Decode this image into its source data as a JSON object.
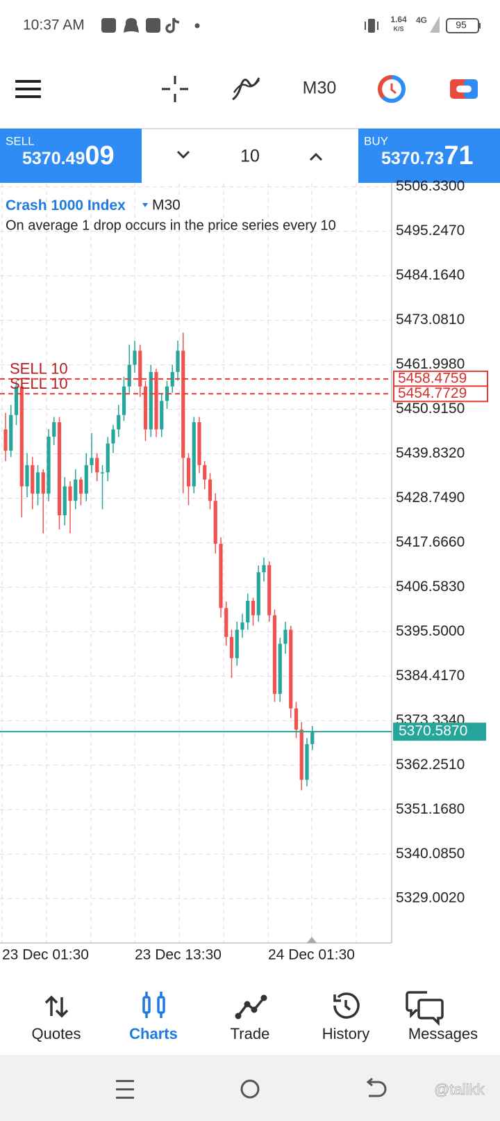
{
  "status_bar": {
    "time": "10:37 AM",
    "speed": "1.64",
    "speed_unit": "K/S",
    "network": "4G",
    "battery": "95"
  },
  "toolbar": {
    "timeframe": "M30"
  },
  "trade_bar": {
    "sell_label": "SELL",
    "sell_price_main": "5370.49",
    "sell_price_big": "09",
    "volume": "10",
    "buy_label": "BUY",
    "buy_price_main": "5370.73",
    "buy_price_big": "71"
  },
  "chart": {
    "symbol": "Crash 1000 Index",
    "timeframe": "M30",
    "description": "On average 1 drop occurs in the price series every 10",
    "ylim": [
      5318.0,
      5506.9
    ],
    "yticks": [
      {
        "value": 5506.33,
        "label": "5506.3300"
      },
      {
        "value": 5495.247,
        "label": "5495.2470"
      },
      {
        "value": 5484.164,
        "label": "5484.1640"
      },
      {
        "value": 5473.081,
        "label": "5473.0810"
      },
      {
        "value": 5461.998,
        "label": "5461.9980"
      },
      {
        "value": 5450.915,
        "label": "5450.9150"
      },
      {
        "value": 5439.832,
        "label": "5439.8320"
      },
      {
        "value": 5428.749,
        "label": "5428.7490"
      },
      {
        "value": 5417.666,
        "label": "5417.6660"
      },
      {
        "value": 5406.583,
        "label": "5406.5830"
      },
      {
        "value": 5395.5,
        "label": "5395.5000"
      },
      {
        "value": 5384.417,
        "label": "5384.4170"
      },
      {
        "value": 5373.334,
        "label": "5373.3340"
      },
      {
        "value": 5362.251,
        "label": "5362.2510"
      },
      {
        "value": 5351.168,
        "label": "5351.1680"
      },
      {
        "value": 5340.085,
        "label": "5340.0850"
      },
      {
        "value": 5329.002,
        "label": "5329.0020"
      }
    ],
    "xticks": [
      "23 Dec 01:30",
      "23 Dec 13:30",
      "24 Dec 01:30"
    ],
    "up_color": "#26a69a",
    "down_color": "#ef5350",
    "candles": {
      "open": [
        5445.9,
        5440.6,
        5449.5,
        5456.6,
        5431.7,
        5437.0,
        5429.9,
        5435.2,
        5429.9,
        5444.1,
        5447.7,
        5424.5,
        5431.7,
        5428.1,
        5433.4,
        5429.9,
        5437.0,
        5438.8,
        5435.2,
        5435.2,
        5442.4,
        5445.9,
        5449.5,
        5456.6,
        5462.0,
        5465.5,
        5456.6,
        5445.9,
        5460.2,
        5445.9,
        5453.0,
        5456.6,
        5460.2,
        5465.5,
        5438.8,
        5431.7,
        5447.7,
        5437.0,
        5433.4,
        5428.1,
        5417.4,
        5401.4,
        5394.2,
        5388.9,
        5396.0,
        5397.8,
        5403.2,
        5399.6,
        5410.3,
        5412.1,
        5399.6,
        5380.0,
        5392.5,
        5396.0,
        5376.4,
        5371.1,
        5358.6,
        5367.5
      ],
      "high": [
        5450,
        5452,
        5458,
        5458,
        5440,
        5439,
        5437,
        5436,
        5446,
        5449,
        5449,
        5434,
        5433,
        5436,
        5434,
        5440,
        5445,
        5440,
        5437,
        5444,
        5447,
        5452,
        5459,
        5467,
        5468,
        5467,
        5458,
        5462,
        5461,
        5455,
        5458,
        5462,
        5468,
        5470,
        5440,
        5449,
        5449,
        5438,
        5435,
        5430,
        5419,
        5403,
        5396,
        5398,
        5400,
        5405,
        5404,
        5412,
        5414,
        5413,
        5401,
        5394,
        5398,
        5397,
        5378,
        5373,
        5369,
        5372
      ],
      "low": [
        5438,
        5439,
        5447,
        5424,
        5429,
        5426,
        5427,
        5420,
        5428,
        5442,
        5421,
        5422,
        5420,
        5426,
        5427,
        5428,
        5435,
        5433,
        5426,
        5433,
        5440,
        5444,
        5448,
        5455,
        5460,
        5454,
        5443,
        5444,
        5444,
        5444,
        5451,
        5455,
        5458,
        5430,
        5427,
        5430,
        5435,
        5431,
        5426,
        5415,
        5399,
        5392,
        5384,
        5387,
        5394,
        5396,
        5397,
        5398,
        5408,
        5398,
        5378,
        5378,
        5390,
        5374,
        5369,
        5356,
        5357,
        5366
      ],
      "close": [
        5440.6,
        5449.5,
        5456.6,
        5431.7,
        5437.0,
        5429.9,
        5435.2,
        5429.9,
        5444.1,
        5447.7,
        5424.5,
        5431.7,
        5428.1,
        5433.4,
        5429.9,
        5437.0,
        5438.8,
        5435.2,
        5435.2,
        5442.4,
        5445.9,
        5449.5,
        5456.6,
        5462.0,
        5465.5,
        5456.6,
        5445.9,
        5460.2,
        5445.9,
        5453.0,
        5456.6,
        5460.2,
        5465.5,
        5438.8,
        5431.7,
        5447.7,
        5437.0,
        5433.4,
        5428.1,
        5417.4,
        5401.4,
        5394.2,
        5388.9,
        5396.0,
        5397.8,
        5403.2,
        5399.6,
        5410.3,
        5412.1,
        5399.6,
        5380.0,
        5392.5,
        5396.0,
        5376.4,
        5371.1,
        5358.6,
        5367.5,
        5370.6
      ]
    },
    "orders": [
      {
        "label": "SELL 10",
        "price": 5458.4759
      },
      {
        "label": "SELL 10",
        "price": 5454.7729
      }
    ],
    "current_price": {
      "value": 5370.587,
      "label": "5370.5870"
    }
  },
  "nav": [
    "Quotes",
    "Charts",
    "Trade",
    "History",
    "Messages"
  ],
  "watermark": "@talikk"
}
